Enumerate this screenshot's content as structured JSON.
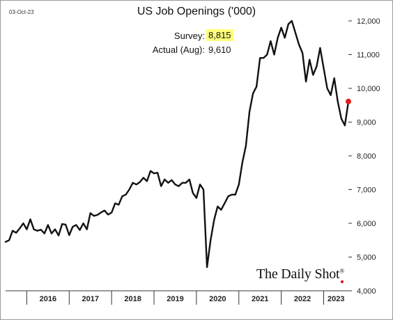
{
  "date_label": "03-Oct-23",
  "brand": {
    "name": "The Daily Shot",
    "mark": "®"
  },
  "colors": {
    "line": "#111111",
    "last_point": "#e02020",
    "highlight": "#ffff7a",
    "axis": "#333333",
    "brand_dot": "#e30613"
  },
  "chart_data": {
    "type": "line",
    "title": "US Job Openings ('000)",
    "xlabel": "",
    "ylabel": "",
    "ylim": [
      4000,
      12000
    ],
    "y_ticks": [
      4000,
      5000,
      6000,
      7000,
      8000,
      9000,
      10000,
      11000,
      12000
    ],
    "y_tick_labels": [
      "4,000",
      "5,000",
      "6,000",
      "7,000",
      "8,000",
      "9,000",
      "10,000",
      "11,000",
      "12,000"
    ],
    "x_range": [
      "2015-07",
      "2023-08"
    ],
    "x_tick_labels": [
      "2016",
      "2017",
      "2018",
      "2019",
      "2020",
      "2021",
      "2022",
      "2023"
    ],
    "grid": false,
    "annotations": {
      "survey_label": "Survey:",
      "survey_value": "8,815",
      "actual_label": "Actual (Aug):",
      "actual_value": "9,610"
    },
    "series": [
      {
        "x": [
          "2015-07",
          "2015-08",
          "2015-09",
          "2015-10",
          "2015-11",
          "2015-12",
          "2016-01",
          "2016-02",
          "2016-03",
          "2016-04",
          "2016-05",
          "2016-06",
          "2016-07",
          "2016-08",
          "2016-09",
          "2016-10",
          "2016-11",
          "2016-12",
          "2017-01",
          "2017-02",
          "2017-03",
          "2017-04",
          "2017-05",
          "2017-06",
          "2017-07",
          "2017-08",
          "2017-09",
          "2017-10",
          "2017-11",
          "2017-12",
          "2018-01",
          "2018-02",
          "2018-03",
          "2018-04",
          "2018-05",
          "2018-06",
          "2018-07",
          "2018-08",
          "2018-09",
          "2018-10",
          "2018-11",
          "2018-12",
          "2019-01",
          "2019-02",
          "2019-03",
          "2019-04",
          "2019-05",
          "2019-06",
          "2019-07",
          "2019-08",
          "2019-09",
          "2019-10",
          "2019-11",
          "2019-12",
          "2020-01",
          "2020-02",
          "2020-03",
          "2020-04",
          "2020-05",
          "2020-06",
          "2020-07",
          "2020-08",
          "2020-09",
          "2020-10",
          "2020-11",
          "2020-12",
          "2021-01",
          "2021-02",
          "2021-03",
          "2021-04",
          "2021-05",
          "2021-06",
          "2021-07",
          "2021-08",
          "2021-09",
          "2021-10",
          "2021-11",
          "2021-12",
          "2022-01",
          "2022-02",
          "2022-03",
          "2022-04",
          "2022-05",
          "2022-06",
          "2022-07",
          "2022-08",
          "2022-09",
          "2022-10",
          "2022-11",
          "2022-12",
          "2023-01",
          "2023-02",
          "2023-03",
          "2023-04",
          "2023-05",
          "2023-06",
          "2023-07",
          "2023-08"
        ],
        "values": [
          5450,
          5500,
          5780,
          5720,
          5850,
          6000,
          5820,
          6120,
          5820,
          5780,
          5810,
          5700,
          5950,
          5700,
          5820,
          5640,
          5980,
          5960,
          5650,
          5900,
          5950,
          5800,
          6000,
          5820,
          6300,
          6220,
          6250,
          6320,
          6380,
          6260,
          6320,
          6590,
          6550,
          6800,
          6850,
          7000,
          7200,
          7150,
          7220,
          7350,
          7250,
          7550,
          7480,
          7500,
          7100,
          7300,
          7200,
          7280,
          7150,
          7100,
          7200,
          7200,
          7300,
          6900,
          6750,
          7150,
          7000,
          4700,
          5500,
          6100,
          6500,
          6400,
          6600,
          6800,
          6850,
          6850,
          7150,
          7800,
          8300,
          9300,
          9850,
          10050,
          10900,
          10900,
          11000,
          11400,
          11000,
          11500,
          11800,
          11500,
          11900,
          12000,
          11650,
          11300,
          11050,
          10200,
          10850,
          10400,
          10650,
          11200,
          10600,
          10000,
          9800,
          10300,
          9600,
          9100,
          8900,
          9610
        ]
      }
    ],
    "last_point": {
      "x": "2023-08",
      "y": 9610
    }
  }
}
